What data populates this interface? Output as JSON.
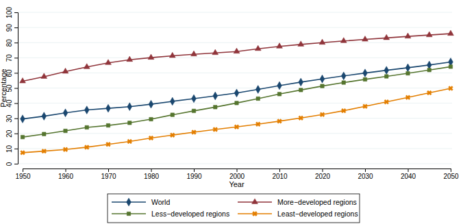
{
  "chart_data": {
    "type": "line",
    "x_label": "Year",
    "y_label": "Percentage",
    "x": [
      1950,
      1955,
      1960,
      1965,
      1970,
      1975,
      1980,
      1985,
      1990,
      1995,
      2000,
      2005,
      2010,
      2015,
      2020,
      2025,
      2030,
      2035,
      2040,
      2045,
      2050
    ],
    "xlim": [
      1950,
      2050
    ],
    "xticks": [
      1950,
      1960,
      1970,
      1980,
      1990,
      2000,
      2010,
      2020,
      2030,
      2040,
      2050
    ],
    "ylim": [
      0,
      100
    ],
    "yticks": [
      0,
      10,
      20,
      30,
      40,
      50,
      60,
      70,
      80,
      90,
      100
    ],
    "grid": true,
    "legend": "bottom",
    "series": [
      {
        "name": "World",
        "color": "#1a476f",
        "marker": "diamond",
        "values": [
          29.6,
          31.4,
          33.6,
          35.5,
          36.6,
          37.7,
          39.3,
          41.2,
          43.0,
          44.8,
          46.7,
          49.1,
          51.6,
          53.9,
          56.0,
          58.0,
          59.9,
          61.7,
          63.4,
          65.2,
          67.2
        ]
      },
      {
        "name": "More−developed regions",
        "color": "#90353b",
        "marker": "triangle",
        "values": [
          54.5,
          57.5,
          60.9,
          63.9,
          66.6,
          68.7,
          70.1,
          71.3,
          72.3,
          73.2,
          74.1,
          75.9,
          77.5,
          78.8,
          80.0,
          81.1,
          82.1,
          83.1,
          84.1,
          85.0,
          85.9
        ]
      },
      {
        "name": "Less−developed regions",
        "color": "#55752f",
        "marker": "square",
        "values": [
          17.6,
          19.6,
          21.7,
          24.0,
          25.3,
          27.0,
          29.4,
          32.3,
          34.9,
          37.4,
          40.1,
          43.0,
          46.0,
          48.7,
          51.3,
          53.6,
          55.7,
          57.7,
          59.7,
          61.9,
          64.1
        ]
      },
      {
        "name": "Least−developed regions",
        "color": "#e37e00",
        "marker": "x",
        "values": [
          7.3,
          8.3,
          9.4,
          10.9,
          12.8,
          14.7,
          17.0,
          18.9,
          20.8,
          22.6,
          24.3,
          26.1,
          28.1,
          30.2,
          32.5,
          35.0,
          37.9,
          40.8,
          43.8,
          46.8,
          49.8
        ]
      }
    ]
  }
}
